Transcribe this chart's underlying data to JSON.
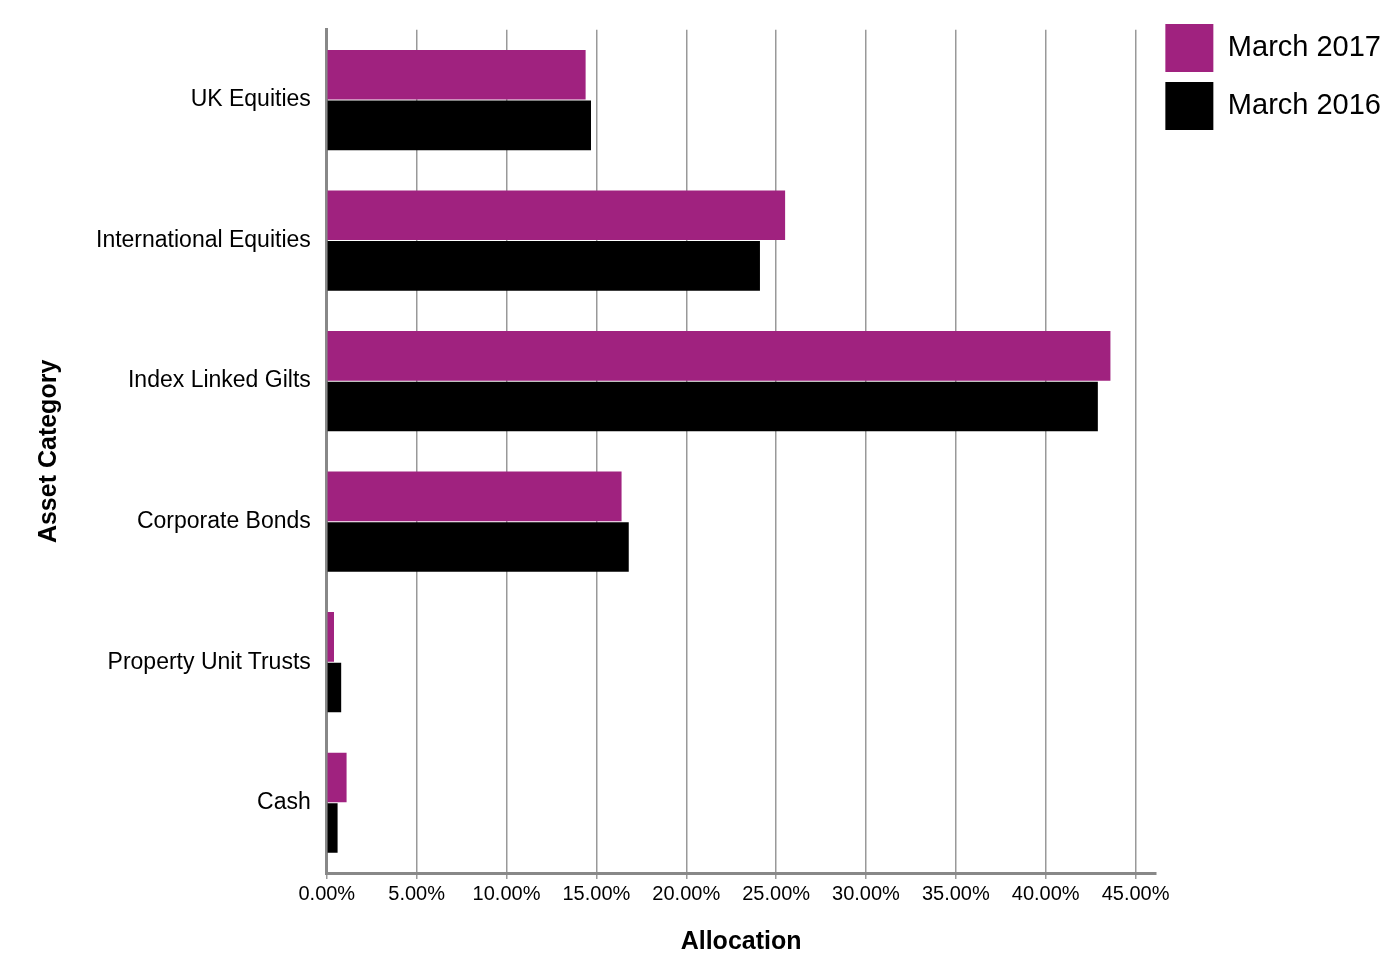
{
  "chart_data": {
    "type": "bar",
    "orientation": "horizontal",
    "xlabel": "Allocation",
    "ylabel": "Asset Category",
    "categories": [
      "UK Equities",
      "International Equities",
      "Index Linked Gilts",
      "Corporate Bonds",
      "Property Unit Trusts",
      "Cash"
    ],
    "series": [
      {
        "name": "March 2017",
        "color": "#a0227f",
        "values": [
          14.4,
          25.5,
          43.6,
          16.4,
          0.4,
          1.1
        ]
      },
      {
        "name": "March 2016",
        "color": "#000000",
        "values": [
          14.7,
          24.1,
          42.9,
          16.8,
          0.8,
          0.6
        ]
      }
    ],
    "xlim": [
      0,
      46.1
    ],
    "xticks": [
      {
        "value": 0,
        "label": "0.00%"
      },
      {
        "value": 5,
        "label": "5.00%"
      },
      {
        "value": 10,
        "label": "10.00%"
      },
      {
        "value": 15,
        "label": "15.00%"
      },
      {
        "value": 20,
        "label": "20.00%"
      },
      {
        "value": 25,
        "label": "25.00%"
      },
      {
        "value": 30,
        "label": "30.00%"
      },
      {
        "value": 35,
        "label": "35.00%"
      },
      {
        "value": 40,
        "label": "40.00%"
      },
      {
        "value": 45,
        "label": "45.00%"
      }
    ],
    "grid": "x",
    "legend": "top right"
  }
}
